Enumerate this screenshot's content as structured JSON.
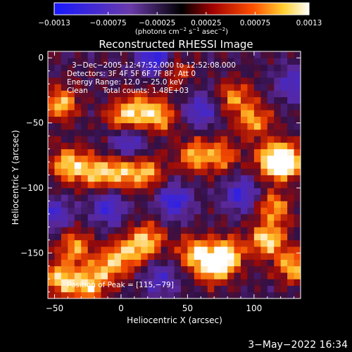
{
  "chart_data": {
    "type": "heatmap",
    "title": "Reconstructed RHESSI Image",
    "xlabel": "Heliocentric X (arcsec)",
    "ylabel": "Heliocentric Y (arcsec)",
    "xlim": [
      -55,
      135
    ],
    "ylim": [
      -185,
      5
    ],
    "x_ticks": [
      -50,
      0,
      50,
      100
    ],
    "x_tick_labels": [
      "−50",
      "0",
      "50",
      "100"
    ],
    "y_ticks": [
      0,
      -50,
      -100,
      -150
    ],
    "y_tick_labels": [
      "0",
      "−50",
      "−100",
      "−150"
    ],
    "colorbar": {
      "range": [
        -0.0013,
        0.0013
      ],
      "ticks": [
        -0.0013,
        -0.00075,
        -0.00025,
        0.00025,
        0.00075,
        0.0013
      ],
      "tick_labels": [
        "−0.0013",
        "−0.00075",
        "−0.00025",
        "0.00025",
        "0.00075",
        "0.0013"
      ],
      "label_main": "(photons cm",
      "label_exp1": "−2",
      "label_mid": " s",
      "label_exp2": "−1",
      "label_mid2": " asec",
      "label_exp3": "−2",
      "label_end": ")"
    },
    "annotations": {
      "time_range": "3−Dec−2005 12:47:52.000 to 12:52:08.000",
      "detectors": "Detectors: 3F 4F 5F 6F 7F 8F, Att 0",
      "energy": "Energy Range: 12.0 − 25.0 keV",
      "method": "Clean",
      "counts": "Total counts: 1.48E+03",
      "peak": "Position of Peak = [115,−79]"
    },
    "bright_sources": [
      {
        "x": -45,
        "y": -35,
        "intensity": 0.001
      },
      {
        "x": -40,
        "y": -82,
        "intensity": 0.0011
      },
      {
        "x": -20,
        "y": -88,
        "intensity": 0.001
      },
      {
        "x": 0,
        "y": -88,
        "intensity": 0.001
      },
      {
        "x": 20,
        "y": -88,
        "intensity": 0.0009
      },
      {
        "x": 15,
        "y": -40,
        "intensity": 0.0009
      },
      {
        "x": 0,
        "y": -45,
        "intensity": 0.0008
      },
      {
        "x": 30,
        "y": -45,
        "intensity": 0.0008
      },
      {
        "x": 55,
        "y": -75,
        "intensity": 0.0009
      },
      {
        "x": 75,
        "y": -75,
        "intensity": 0.0008
      },
      {
        "x": 115,
        "y": -79,
        "intensity": 0.0013
      },
      {
        "x": 125,
        "y": -79,
        "intensity": 0.0012
      },
      {
        "x": 100,
        "y": -48,
        "intensity": 0.0009
      },
      {
        "x": 85,
        "y": -30,
        "intensity": 0.0008
      },
      {
        "x": 115,
        "y": -115,
        "intensity": 0.0009
      },
      {
        "x": 110,
        "y": -140,
        "intensity": 0.0012
      },
      {
        "x": 80,
        "y": -150,
        "intensity": 0.0011
      },
      {
        "x": 70,
        "y": -160,
        "intensity": 0.0012
      },
      {
        "x": 55,
        "y": -150,
        "intensity": 0.001
      },
      {
        "x": 20,
        "y": -140,
        "intensity": 0.001
      },
      {
        "x": 5,
        "y": -150,
        "intensity": 0.0008
      },
      {
        "x": -10,
        "y": -160,
        "intensity": 0.0009
      },
      {
        "x": -35,
        "y": -145,
        "intensity": 0.0009
      },
      {
        "x": -45,
        "y": -170,
        "intensity": 0.0011
      },
      {
        "x": -25,
        "y": -175,
        "intensity": 0.001
      },
      {
        "x": 130,
        "y": -160,
        "intensity": 0.001
      },
      {
        "x": 40,
        "y": -10,
        "intensity": 0.0006
      }
    ],
    "dark_sources": [
      {
        "x": 25,
        "y": 0,
        "intensity": -0.0012
      },
      {
        "x": 40,
        "y": -110,
        "intensity": -0.001
      },
      {
        "x": -10,
        "y": -115,
        "intensity": -0.0009
      },
      {
        "x": 90,
        "y": -105,
        "intensity": -0.0009
      },
      {
        "x": -50,
        "y": -120,
        "intensity": -0.0008
      },
      {
        "x": 5,
        "y": -65,
        "intensity": -0.0008
      },
      {
        "x": 60,
        "y": -40,
        "intensity": -0.0008
      },
      {
        "x": 130,
        "y": -20,
        "intensity": -0.0008
      },
      {
        "x": 30,
        "y": -170,
        "intensity": -0.0007
      }
    ]
  },
  "footer": {
    "date": "3−May−2022 16:34"
  },
  "colors": {
    "background": "#000000",
    "text": "#ffffff"
  }
}
